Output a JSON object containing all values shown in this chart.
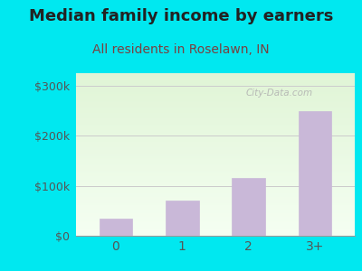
{
  "categories": [
    "0",
    "1",
    "2",
    "3+"
  ],
  "values": [
    35000,
    70000,
    115000,
    250000
  ],
  "bar_color": "#c9b8d8",
  "bar_edgecolor": "#c9b8d8",
  "title": "Median family income by earners",
  "subtitle": "All residents in Roselawn, IN",
  "title_fontsize": 13,
  "subtitle_fontsize": 10,
  "title_color": "#222222",
  "subtitle_color": "#7a4040",
  "ylim": [
    0,
    325000
  ],
  "yticks": [
    0,
    100000,
    200000,
    300000
  ],
  "ytick_labels": [
    "$0",
    "$100k",
    "$200k",
    "$300k"
  ],
  "tick_color": "#555555",
  "bg_outer": "#00e8f0",
  "watermark": "City-Data.com",
  "watermark_color": "#b0b0b0",
  "grid_color": "#cccccc"
}
